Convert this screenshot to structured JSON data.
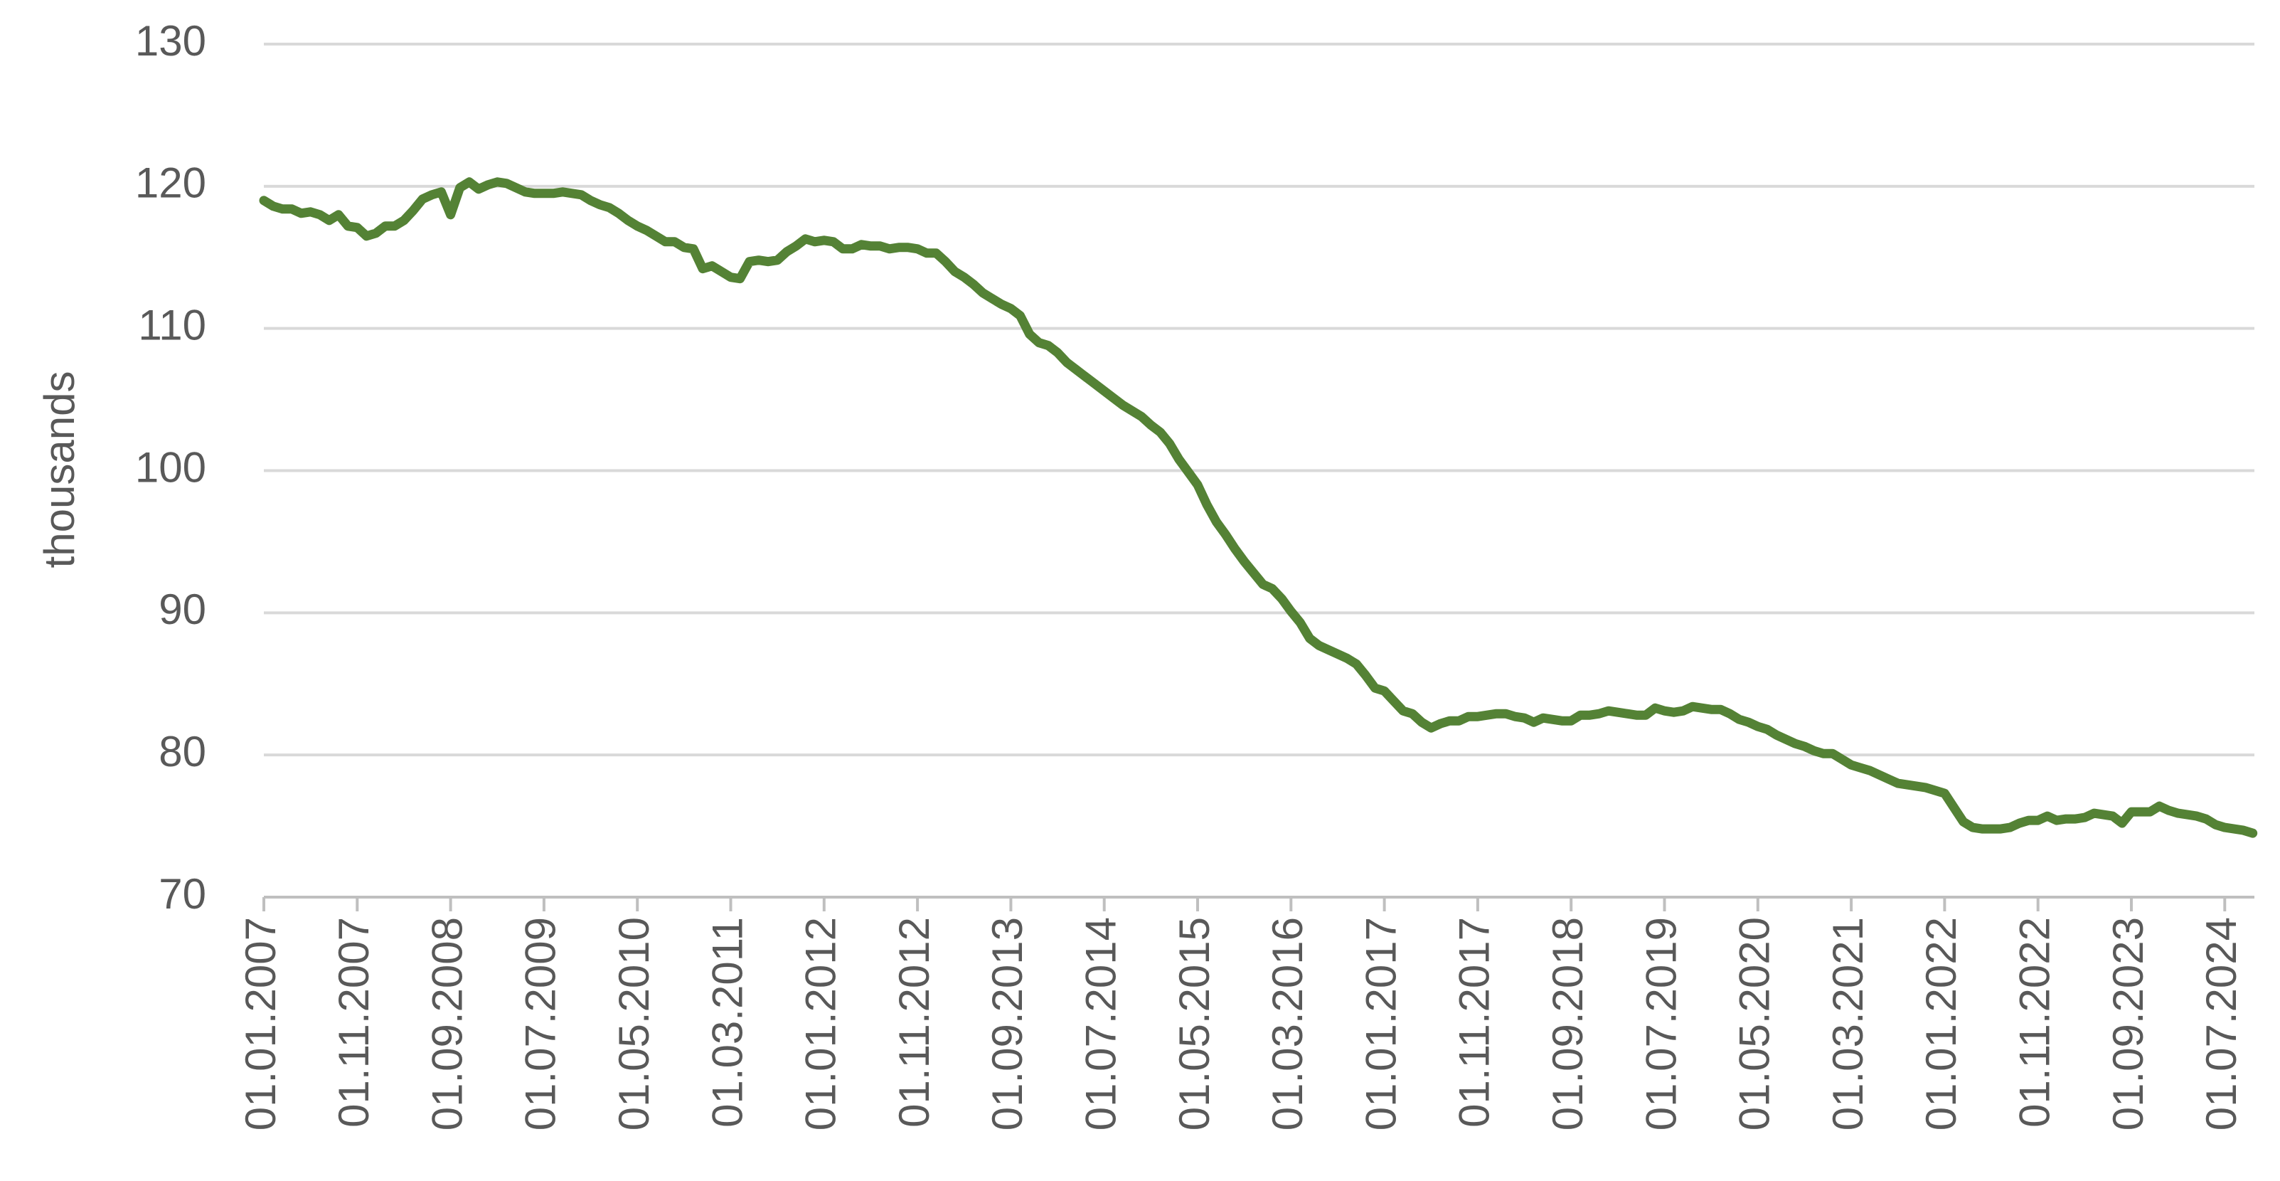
{
  "chart_data": {
    "type": "line",
    "y_label": "thousands",
    "ylim": [
      70,
      130
    ],
    "yticks": [
      70,
      80,
      90,
      100,
      110,
      120,
      130
    ],
    "grid": true,
    "categories": [
      "01.01.2007",
      null,
      null,
      null,
      null,
      null,
      null,
      null,
      null,
      null,
      "01.11.2007",
      null,
      null,
      null,
      null,
      null,
      null,
      null,
      null,
      null,
      "01.09.2008",
      null,
      null,
      null,
      null,
      null,
      null,
      null,
      null,
      null,
      "01.07.2009",
      null,
      null,
      null,
      null,
      null,
      null,
      null,
      null,
      null,
      "01.05.2010",
      null,
      null,
      null,
      null,
      null,
      null,
      null,
      null,
      null,
      "01.03.2011",
      null,
      null,
      null,
      null,
      null,
      null,
      null,
      null,
      null,
      "01.01.2012",
      null,
      null,
      null,
      null,
      null,
      null,
      null,
      null,
      null,
      "01.11.2012",
      null,
      null,
      null,
      null,
      null,
      null,
      null,
      null,
      null,
      "01.09.2013",
      null,
      null,
      null,
      null,
      null,
      null,
      null,
      null,
      null,
      "01.07.2014",
      null,
      null,
      null,
      null,
      null,
      null,
      null,
      null,
      null,
      "01.05.2015",
      null,
      null,
      null,
      null,
      null,
      null,
      null,
      null,
      null,
      "01.03.2016",
      null,
      null,
      null,
      null,
      null,
      null,
      null,
      null,
      null,
      "01.01.2017",
      null,
      null,
      null,
      null,
      null,
      null,
      null,
      null,
      null,
      "01.11.2017",
      null,
      null,
      null,
      null,
      null,
      null,
      null,
      null,
      null,
      "01.09.2018",
      null,
      null,
      null,
      null,
      null,
      null,
      null,
      null,
      null,
      "01.07.2019",
      null,
      null,
      null,
      null,
      null,
      null,
      null,
      null,
      null,
      "01.05.2020",
      null,
      null,
      null,
      null,
      null,
      null,
      null,
      null,
      null,
      "01.03.2021",
      null,
      null,
      null,
      null,
      null,
      null,
      null,
      null,
      null,
      "01.01.2022",
      null,
      null,
      null,
      null,
      null,
      null,
      null,
      null,
      null,
      "01.11.2022",
      null,
      null,
      null,
      null,
      null,
      null,
      null,
      null,
      null,
      "01.09.2023",
      null,
      null,
      null,
      null,
      null,
      null,
      null,
      null,
      null,
      "01.07.2024",
      null,
      null,
      null
    ],
    "series": [
      {
        "color": "#548235",
        "values": [
          119,
          118.6,
          118.4,
          118.4,
          118.1,
          118.2,
          118.0,
          117.6,
          118.0,
          117.2,
          117.1,
          116.5,
          116.7,
          117.2,
          117.2,
          117.6,
          118.3,
          119.1,
          119.4,
          119.6,
          118.0,
          119.9,
          120.3,
          119.8,
          120.1,
          120.3,
          120.2,
          119.9,
          119.6,
          119.5,
          119.5,
          119.5,
          119.6,
          119.5,
          119.4,
          119.0,
          118.7,
          118.5,
          118.1,
          117.6,
          117.2,
          116.9,
          116.5,
          116.1,
          116.1,
          115.7,
          115.6,
          114.2,
          114.4,
          114.0,
          113.6,
          113.5,
          114.7,
          114.8,
          114.7,
          114.8,
          115.4,
          115.8,
          116.3,
          116.1,
          116.2,
          116.1,
          115.6,
          115.6,
          115.9,
          115.8,
          115.8,
          115.6,
          115.7,
          115.7,
          115.6,
          115.3,
          115.3,
          114.7,
          114.0,
          113.6,
          113.1,
          112.5,
          112.1,
          111.7,
          111.4,
          110.9,
          109.6,
          109.0,
          108.8,
          108.3,
          107.6,
          107.1,
          106.6,
          106.1,
          105.6,
          105.1,
          104.6,
          104.2,
          103.8,
          103.2,
          102.7,
          101.9,
          100.8,
          99.9,
          99.0,
          97.6,
          96.4,
          95.5,
          94.5,
          93.6,
          92.8,
          92.0,
          91.7,
          91.0,
          90.1,
          89.3,
          88.2,
          87.7,
          87.4,
          87.1,
          86.8,
          86.4,
          85.6,
          84.7,
          84.5,
          83.8,
          83.1,
          82.9,
          82.3,
          81.9,
          82.2,
          82.4,
          82.4,
          82.7,
          82.7,
          82.8,
          82.9,
          82.9,
          82.7,
          82.6,
          82.3,
          82.6,
          82.5,
          82.4,
          82.4,
          82.8,
          82.8,
          82.9,
          83.1,
          83.0,
          82.9,
          82.8,
          82.8,
          83.3,
          83.1,
          83.0,
          83.1,
          83.4,
          83.3,
          83.2,
          83.2,
          82.9,
          82.5,
          82.3,
          82.0,
          81.8,
          81.4,
          81.1,
          80.8,
          80.6,
          80.3,
          80.1,
          80.1,
          79.7,
          79.3,
          79.1,
          78.9,
          78.6,
          78.3,
          78.0,
          77.9,
          77.8,
          77.7,
          77.5,
          77.3,
          76.3,
          75.3,
          74.9,
          74.8,
          74.8,
          74.8,
          74.9,
          75.2,
          75.4,
          75.4,
          75.7,
          75.4,
          75.5,
          75.5,
          75.6,
          75.9,
          75.8,
          75.7,
          75.2,
          76.0,
          76.0,
          76.0,
          76.4,
          76.1,
          75.9,
          75.8,
          75.7,
          75.5,
          75.1,
          74.9,
          74.8,
          74.7,
          74.5
        ]
      }
    ]
  }
}
